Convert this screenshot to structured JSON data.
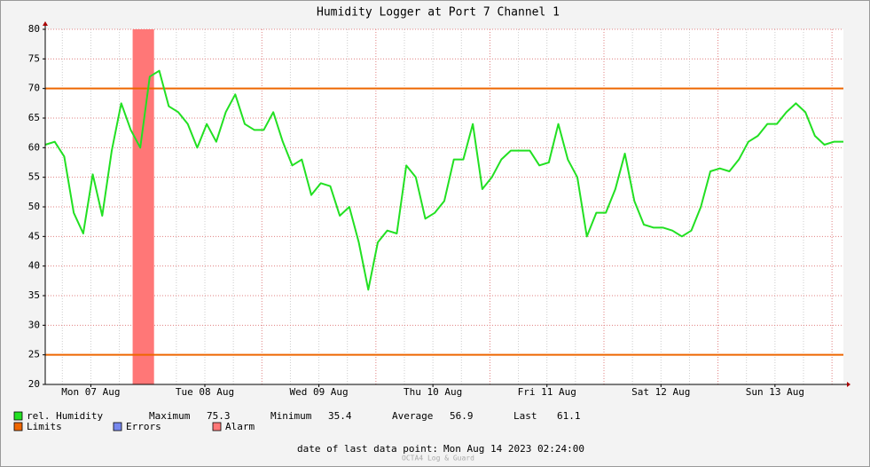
{
  "chart_data": {
    "type": "line",
    "title": "Humidity Logger at Port 7 Channel 1",
    "x": [
      0,
      2,
      4,
      6,
      8,
      10,
      12,
      14,
      16,
      18,
      20,
      22,
      24,
      26,
      28,
      30,
      32,
      34,
      36,
      38,
      40,
      42,
      44,
      46,
      48,
      50,
      52,
      54,
      56,
      58,
      60,
      62,
      64,
      66,
      68,
      70,
      72,
      74,
      76,
      78,
      80,
      82,
      84,
      86,
      88,
      90,
      92,
      94,
      96,
      98,
      100,
      102,
      104,
      106,
      108,
      110,
      112,
      114,
      116,
      118,
      120,
      122,
      124,
      126,
      128,
      130,
      132,
      134,
      136,
      138,
      140,
      142,
      144,
      146,
      148,
      150,
      152,
      154,
      156,
      158,
      160,
      162,
      164,
      166,
      168
    ],
    "series": [
      {
        "name": "rel. Humidity",
        "color": "#22e022",
        "values": [
          60.5,
          61,
          58.5,
          49,
          45.5,
          55.5,
          48.5,
          59.5,
          67.5,
          63,
          60,
          72,
          73,
          67,
          66,
          64,
          60,
          64,
          61,
          66,
          69,
          64,
          63,
          63,
          66,
          61,
          57,
          58,
          52,
          54,
          53.5,
          48.5,
          50,
          44,
          36,
          44,
          46,
          45.5,
          57,
          55,
          48,
          49,
          51,
          58,
          58,
          64,
          53,
          55,
          58,
          59.5,
          59.5,
          59.5,
          57,
          57.5,
          64,
          58,
          55,
          45,
          49,
          49,
          53,
          59,
          51,
          47,
          46.5,
          46.5,
          46,
          45,
          46,
          50,
          56,
          56.5,
          56,
          58,
          61,
          62,
          64,
          64,
          66,
          67.5,
          66,
          62,
          60.5,
          61,
          61
        ]
      }
    ],
    "limits_name": "Limits",
    "limits_color": "#ee6600",
    "limits": [
      70,
      25
    ],
    "errors_name": "Errors",
    "errors_color": "#7788ee",
    "alarm_name": "Alarm",
    "alarm_color": "#ff7777",
    "alarms": [
      [
        18.4,
        22.9
      ]
    ],
    "xlim": [
      0,
      168
    ],
    "xticks": [
      {
        "value": 9.6,
        "label": "Mon 07 Aug"
      },
      {
        "value": 33.6,
        "label": "Tue 08 Aug"
      },
      {
        "value": 57.6,
        "label": "Wed 09 Aug"
      },
      {
        "value": 81.6,
        "label": "Thu 10 Aug"
      },
      {
        "value": 105.6,
        "label": "Fri 11 Aug"
      },
      {
        "value": 129.6,
        "label": "Sat 12 Aug"
      },
      {
        "value": 153.6,
        "label": "Sun 13 Aug"
      }
    ],
    "ylim": [
      20,
      80
    ],
    "yticks": [
      20,
      25,
      30,
      35,
      40,
      45,
      50,
      55,
      60,
      65,
      70,
      75,
      80
    ],
    "grid": true,
    "stats": [
      {
        "label": "Maximum",
        "value": 75.3
      },
      {
        "label": "Minimum",
        "value": 35.4
      },
      {
        "label": "Average",
        "value": 56.9
      },
      {
        "label": "Last",
        "value": 61.1
      }
    ],
    "last_point_label": "date of last data point:",
    "last_point": "Mon Aug 14 2023 02:24:00",
    "footer": "OCTA4 Log & Guard"
  }
}
